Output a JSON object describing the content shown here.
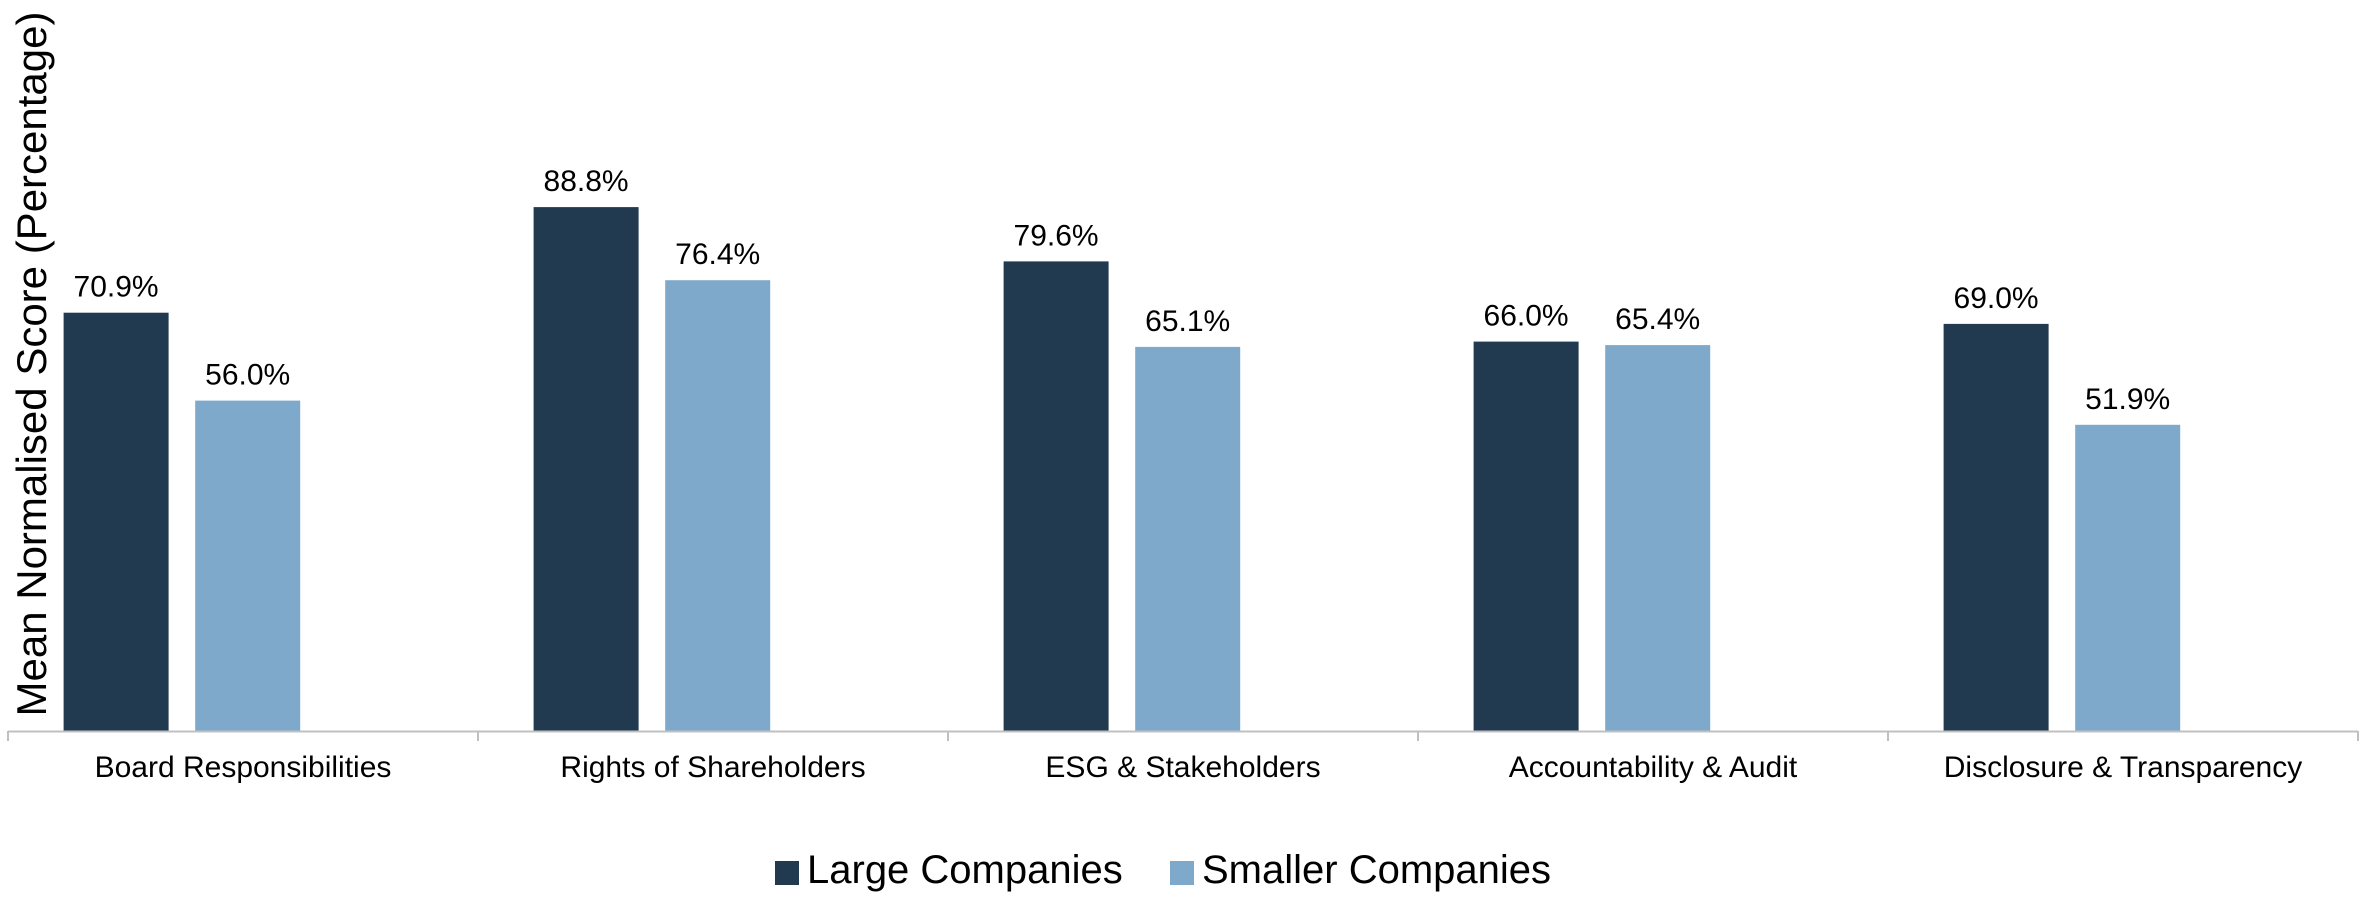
{
  "colors": {
    "large": "#223a4f",
    "smaller": "#7ea9cb",
    "axis": "#c0c0c0",
    "text": "#000000"
  },
  "chart_data": {
    "type": "bar",
    "categories": [
      "Board Responsibilities",
      "Rights of Shareholders",
      "ESG & Stakeholders",
      "Accountability & Audit",
      "Disclosure & Transparency"
    ],
    "series": [
      {
        "name": "Large Companies",
        "values": [
          70.9,
          88.8,
          79.6,
          66.0,
          69.0
        ],
        "labels": [
          "70.9%",
          "88.8%",
          "79.6%",
          "66.0%",
          "69.0%"
        ]
      },
      {
        "name": "Smaller Companies",
        "values": [
          56.0,
          76.4,
          65.1,
          65.4,
          51.9
        ],
        "labels": [
          "56.0%",
          "76.4%",
          "65.1%",
          "65.4%",
          "51.9%"
        ]
      }
    ],
    "ylabel": "Mean Normalised Score (Percentage)",
    "xlabel": "",
    "title": "",
    "ylim": [
      0,
      100
    ],
    "grid": false,
    "legend_position": "bottom"
  }
}
